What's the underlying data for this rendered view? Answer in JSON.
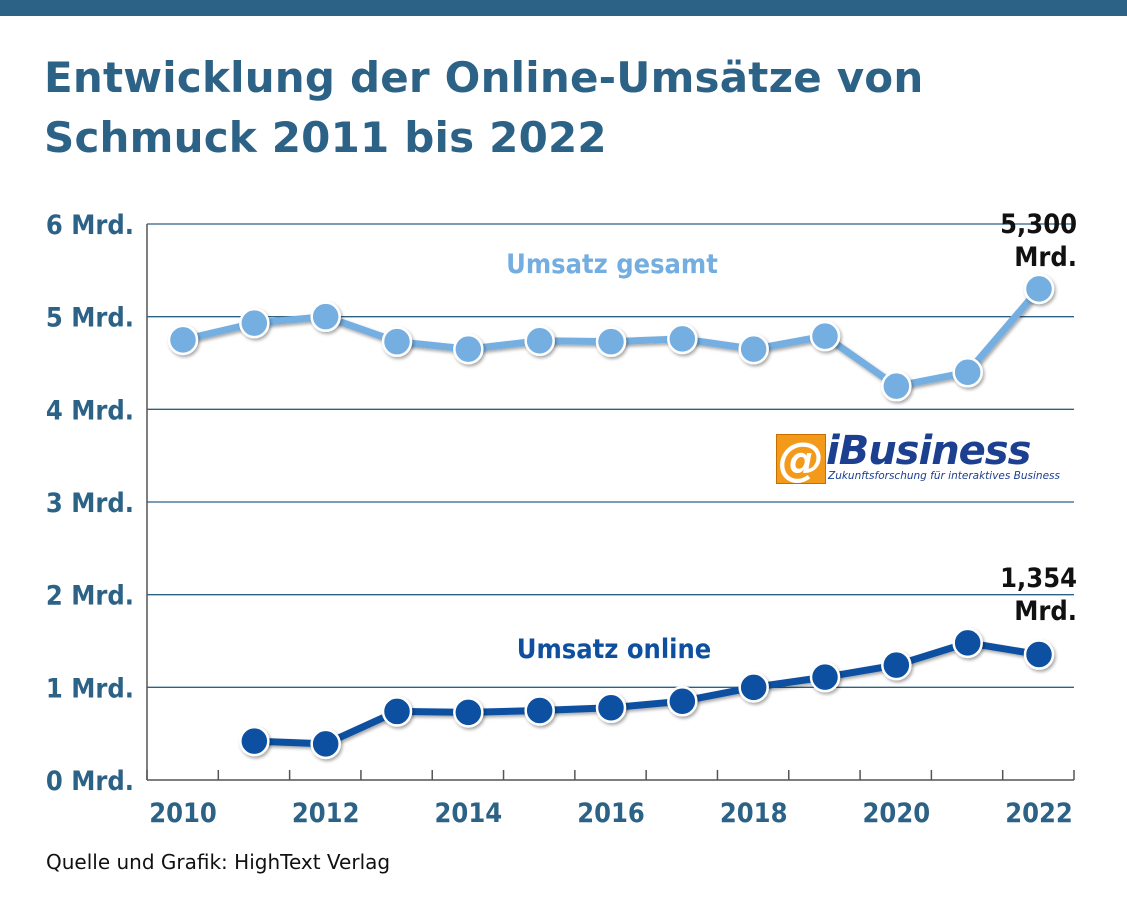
{
  "header": {
    "title_line1": "Entwicklung der Online-Umsätze von",
    "title_line2": "Schmuck 2011 bis 2022"
  },
  "source": "Quelle und Grafik: HighText Verlag",
  "logo": {
    "mark": "@",
    "word": "iBusiness",
    "tagline": "Zukunftsforschung für interaktives Business"
  },
  "colors": {
    "title": "#2c6286",
    "axis_text": "#2c6286",
    "gridline": "#2c6286",
    "series_gesamt": "#74aee0",
    "series_online": "#0f4fa0",
    "logo_orange": "#f39a1b",
    "logo_blue": "#1d3f8f"
  },
  "chart_data": {
    "type": "line",
    "title": "",
    "xlabel": "",
    "ylabel": "",
    "xlim": [
      2010,
      2022
    ],
    "ylim": [
      0,
      6
    ],
    "grid": true,
    "x_ticks": [
      2010,
      2012,
      2014,
      2016,
      2018,
      2020,
      2022
    ],
    "y_ticks": [
      {
        "value": 0,
        "label": "0 Mrd."
      },
      {
        "value": 1,
        "label": "1 Mrd."
      },
      {
        "value": 2,
        "label": "2 Mrd."
      },
      {
        "value": 3,
        "label": "3 Mrd."
      },
      {
        "value": 4,
        "label": "4 Mrd."
      },
      {
        "value": 5,
        "label": "5 Mrd."
      },
      {
        "value": 6,
        "label": "6 Mrd."
      }
    ],
    "series": [
      {
        "name": "Umsatz gesamt",
        "color": "#74aee0",
        "x": [
          2010,
          2011,
          2012,
          2013,
          2014,
          2015,
          2016,
          2017,
          2018,
          2019,
          2020,
          2021,
          2022
        ],
        "values": [
          4.75,
          4.93,
          5.0,
          4.73,
          4.65,
          4.74,
          4.73,
          4.76,
          4.65,
          4.79,
          4.25,
          4.4,
          5.3
        ],
        "end_label": [
          "5,300",
          "Mrd."
        ]
      },
      {
        "name": "Umsatz online",
        "color": "#0f4fa0",
        "x": [
          2011,
          2012,
          2013,
          2014,
          2015,
          2016,
          2017,
          2018,
          2019,
          2020,
          2021,
          2022
        ],
        "values": [
          0.42,
          0.39,
          0.74,
          0.73,
          0.75,
          0.78,
          0.85,
          1.0,
          1.11,
          1.24,
          1.48,
          1.354
        ],
        "end_label": [
          "1,354",
          "Mrd."
        ]
      }
    ]
  }
}
